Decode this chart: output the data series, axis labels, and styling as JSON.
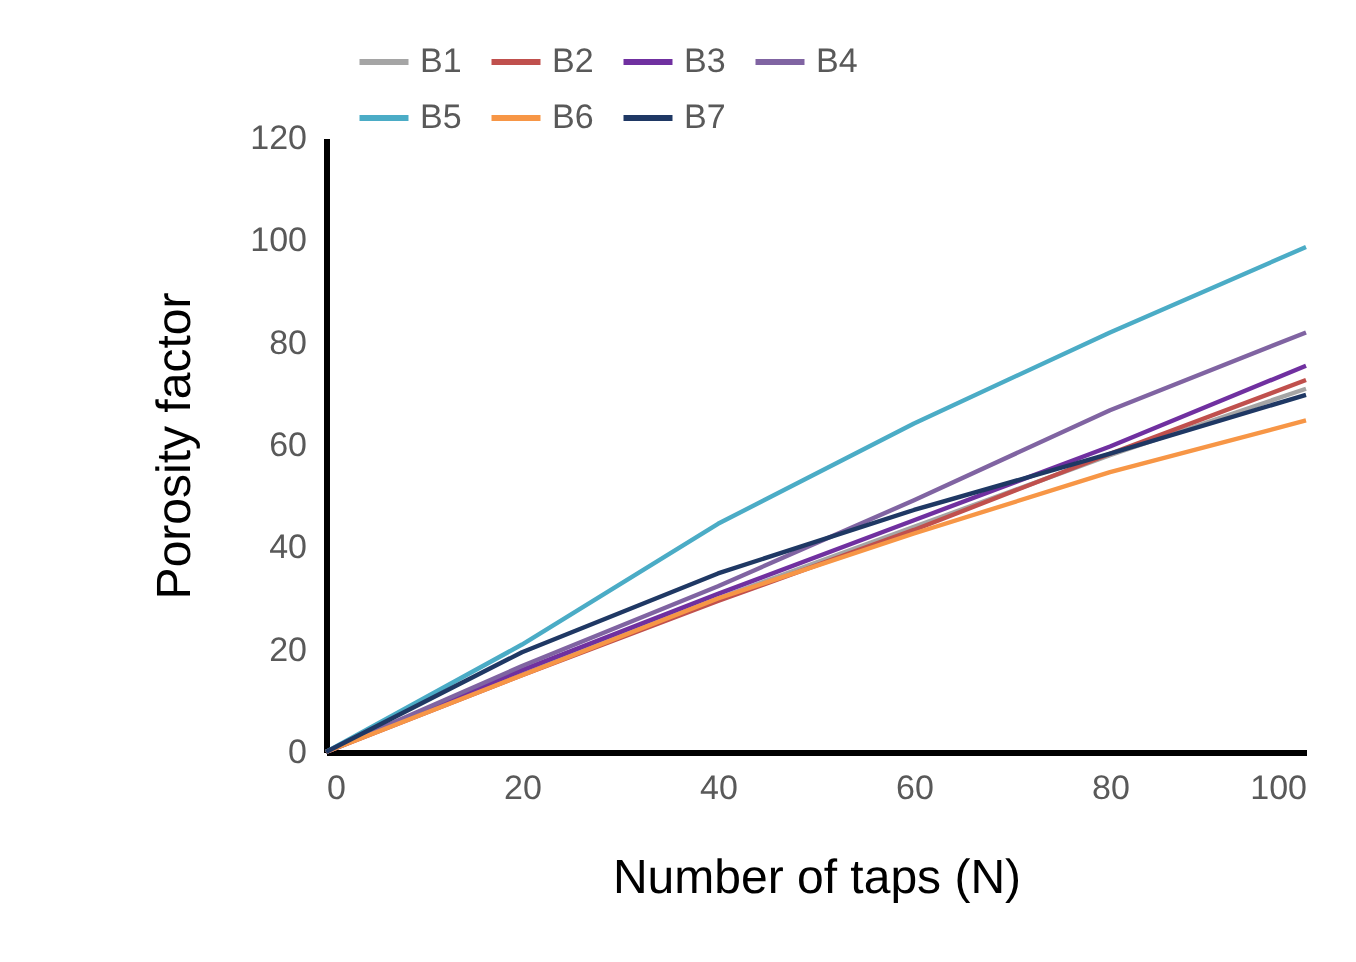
{
  "chart_data": {
    "type": "line",
    "xlabel": "Number of taps (N)",
    "ylabel": "Porosity factor",
    "x": [
      0,
      20,
      40,
      60,
      80,
      100
    ],
    "series": [
      {
        "name": "B1",
        "color": "#a5a5a5",
        "values": [
          0,
          15.5,
          30,
          44,
          58,
          71
        ]
      },
      {
        "name": "B2",
        "color": "#c0504d",
        "values": [
          0,
          15,
          29.5,
          43.4,
          58.3,
          72.7
        ]
      },
      {
        "name": "B3",
        "color": "#7030a0",
        "values": [
          0,
          16,
          30.9,
          45.3,
          59.7,
          75.5
        ]
      },
      {
        "name": "B4",
        "color": "#8064a2",
        "values": [
          0,
          16.8,
          32.4,
          49.2,
          66.8,
          82
        ]
      },
      {
        "name": "B5",
        "color": "#4bacc6",
        "values": [
          0,
          21,
          44.6,
          64.2,
          82,
          98.7
        ]
      },
      {
        "name": "B6",
        "color": "#f79646",
        "values": [
          0,
          15,
          30,
          42.7,
          54.7,
          64.8
        ]
      },
      {
        "name": "B7",
        "color": "#1f3864",
        "values": [
          0,
          19.5,
          34.9,
          47.3,
          58.3,
          69.8
        ]
      }
    ],
    "xlim": [
      0,
      100
    ],
    "xticks": [
      0,
      20,
      40,
      60,
      80,
      100
    ],
    "ylim": [
      0,
      120
    ],
    "yticks": [
      0,
      20,
      40,
      60,
      80,
      100,
      120
    ],
    "grid": false,
    "legend": "top left"
  }
}
